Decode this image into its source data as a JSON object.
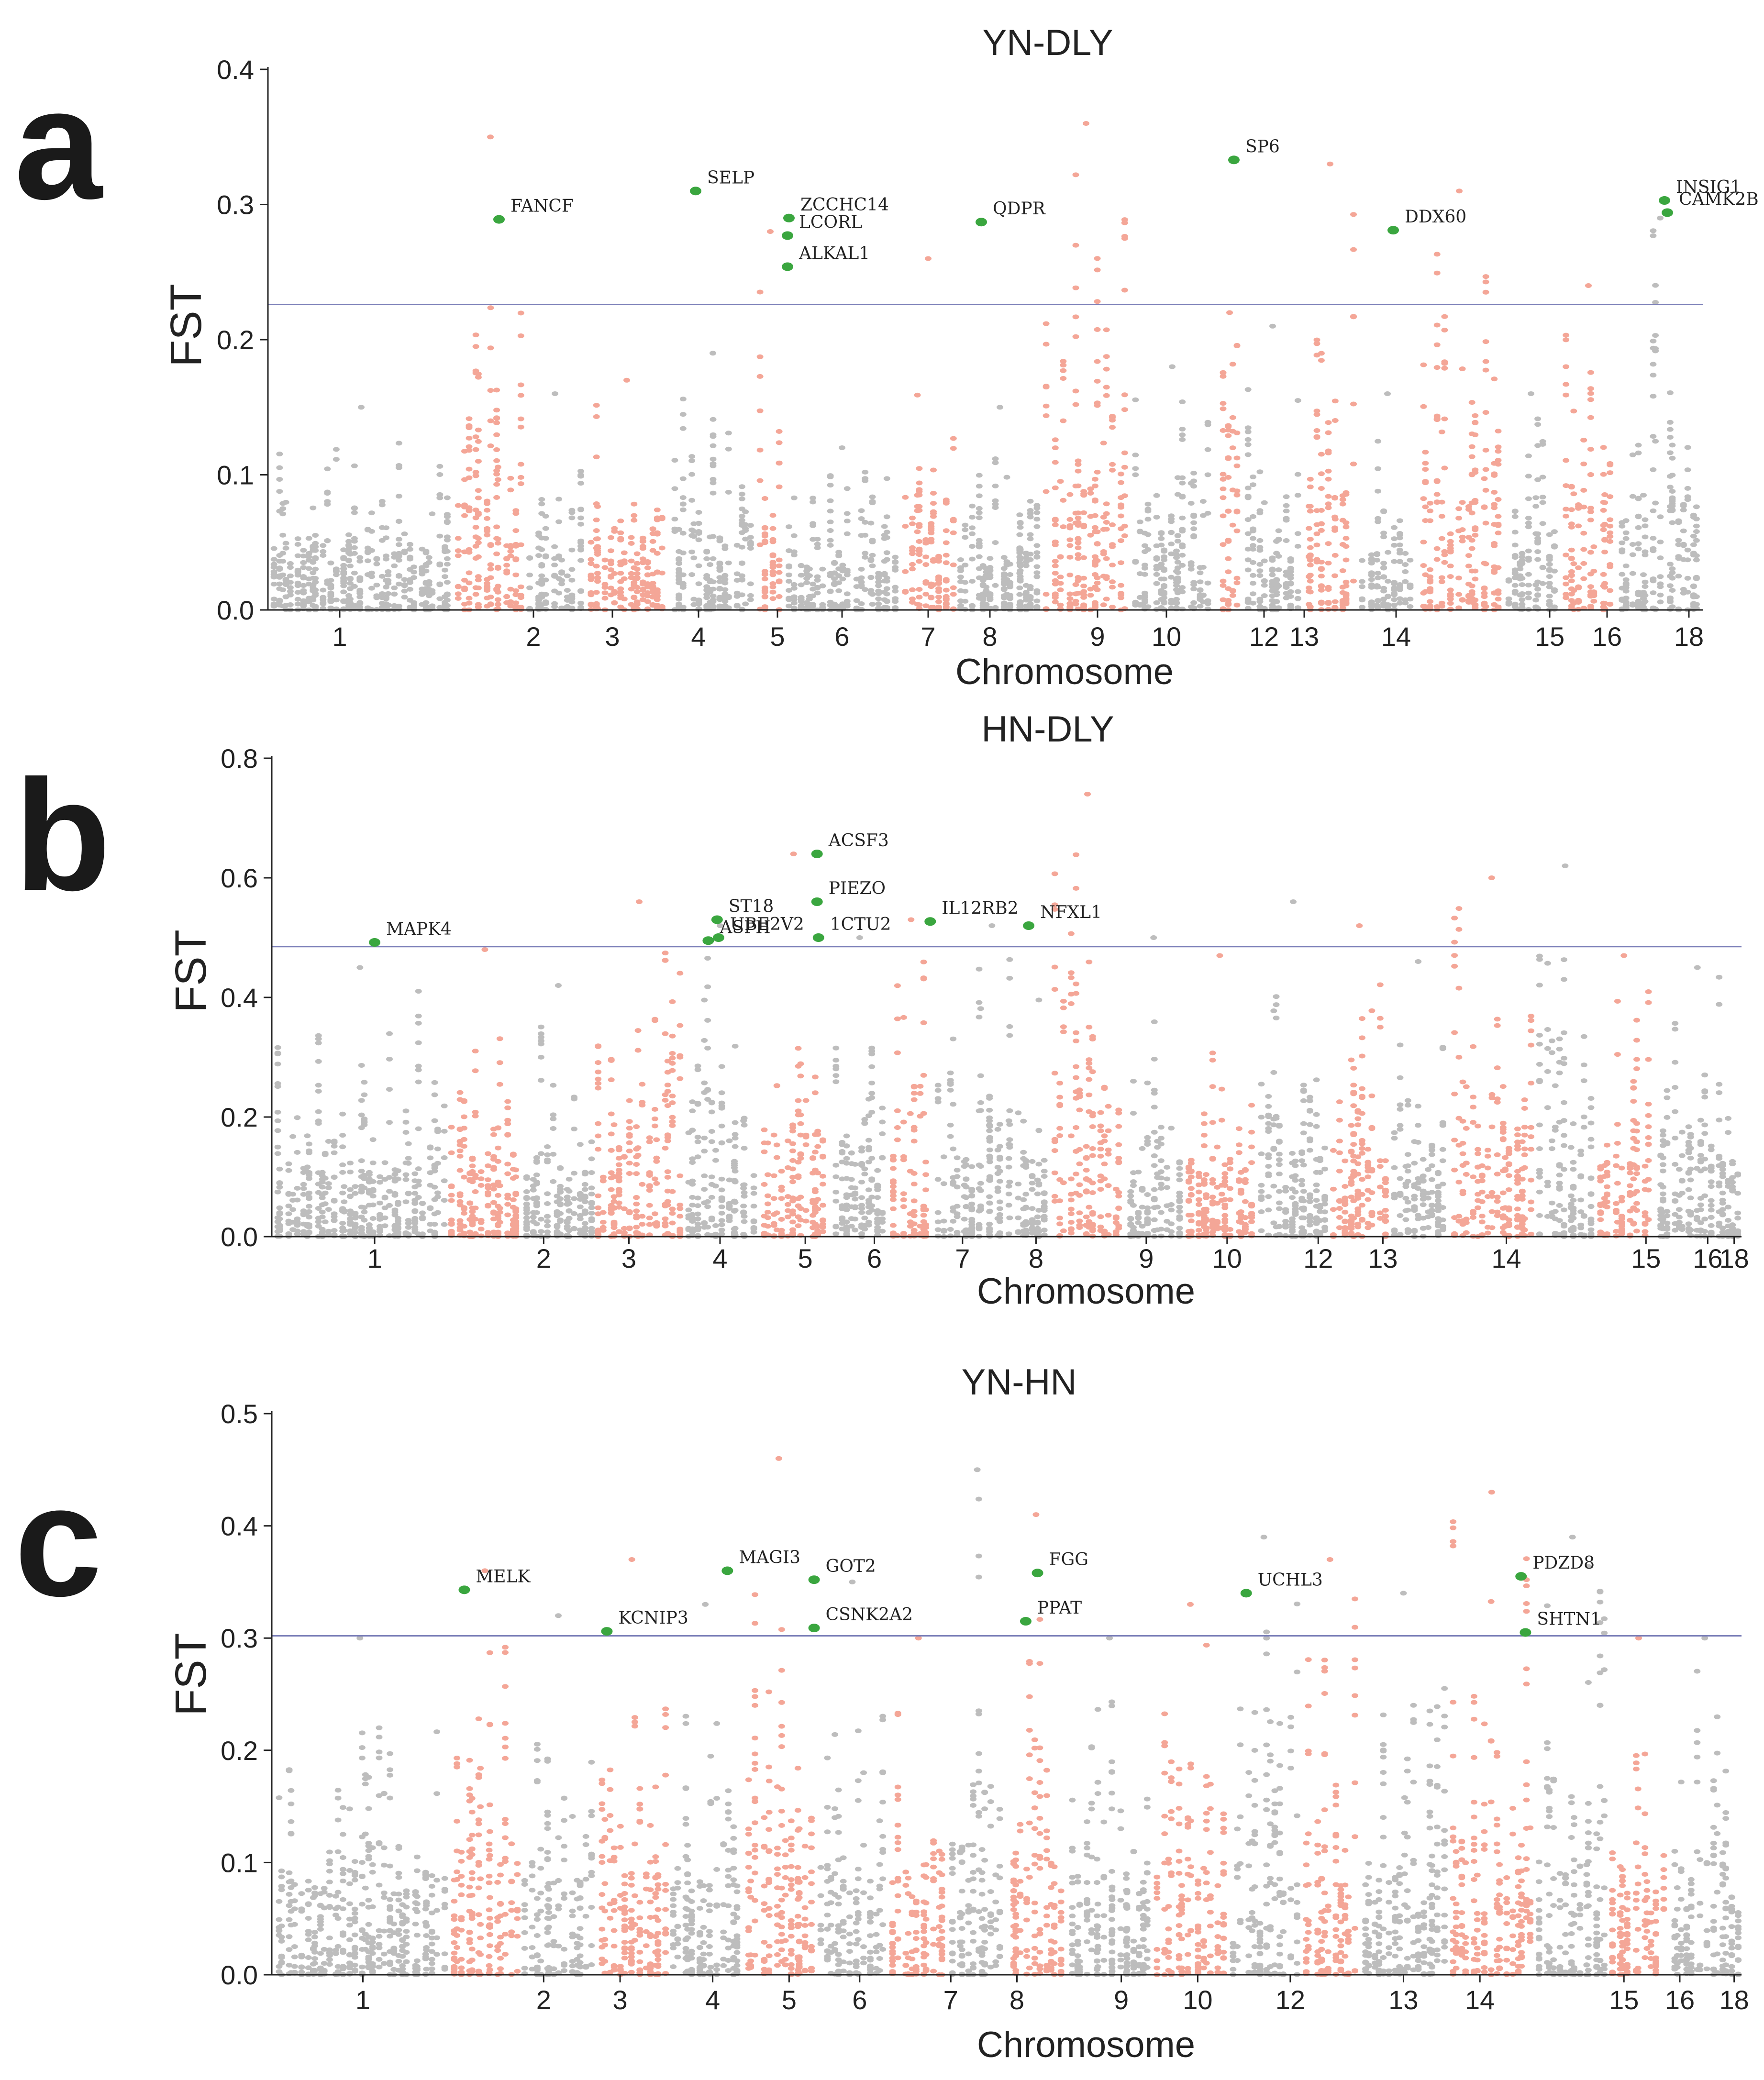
{
  "colors": {
    "gray": "#bdbdbd",
    "salmon": "#f4a697",
    "highlight": "#3aa63f",
    "threshold": "#7b7fb8"
  },
  "chart_data": [
    {
      "type": "scatter",
      "panel_label": "a",
      "title": "YN-DLY",
      "ylabel": "FST",
      "xlabel": "Chromosome",
      "ylim": [
        0.0,
        0.4
      ],
      "yticks": [
        "0.0",
        "0.1",
        "0.2",
        "0.3",
        "0.4"
      ],
      "threshold": 0.226,
      "chromosomes": [
        "1",
        "2",
        "3",
        "4",
        "5",
        "6",
        "7",
        "8",
        "9",
        "10",
        "12",
        "13",
        "14",
        "15",
        "16",
        "18"
      ],
      "chromosome_tick_positions": [
        0.05,
        0.185,
        0.24,
        0.3,
        0.355,
        0.4,
        0.46,
        0.503,
        0.578,
        0.626,
        0.694,
        0.722,
        0.786,
        0.893,
        0.933,
        0.99
      ],
      "chromosome_bands": [
        0.0,
        0.13,
        0.18,
        0.22,
        0.28,
        0.34,
        0.36,
        0.44,
        0.48,
        0.54,
        0.6,
        0.66,
        0.68,
        0.72,
        0.76,
        0.8,
        0.86,
        0.9,
        0.94,
        1.0
      ],
      "band_peaks": [
        0.15,
        0.35,
        0.16,
        0.17,
        0.19,
        0.28,
        0.12,
        0.26,
        0.15,
        0.36,
        0.18,
        0.22,
        0.21,
        0.33,
        0.16,
        0.31,
        0.16,
        0.24,
        0.29,
        0.28
      ],
      "genes": [
        {
          "name": "FANCF",
          "pos": 0.161,
          "fst": 0.289
        },
        {
          "name": "SELP",
          "pos": 0.298,
          "fst": 0.31
        },
        {
          "name": "ZCCHC14",
          "pos": 0.363,
          "fst": 0.29
        },
        {
          "name": "LCORL",
          "pos": 0.362,
          "fst": 0.277
        },
        {
          "name": "ALKAL1",
          "pos": 0.362,
          "fst": 0.254
        },
        {
          "name": "QDPR",
          "pos": 0.497,
          "fst": 0.287
        },
        {
          "name": "SP6",
          "pos": 0.673,
          "fst": 0.333
        },
        {
          "name": "DDX60",
          "pos": 0.784,
          "fst": 0.281
        },
        {
          "name": "INSIG1",
          "pos": 0.973,
          "fst": 0.303
        },
        {
          "name": "CAMK2B",
          "pos": 0.975,
          "fst": 0.294
        }
      ]
    },
    {
      "type": "scatter",
      "panel_label": "b",
      "title": "HN-DLY",
      "ylabel": "FST",
      "xlabel": "Chromosome",
      "ylim": [
        0.0,
        0.8
      ],
      "yticks": [
        "0.0",
        "0.2",
        "0.4",
        "0.6",
        "0.8"
      ],
      "threshold": 0.485,
      "chromosomes": [
        "1",
        "2",
        "3",
        "4",
        "5",
        "6",
        "7",
        "8",
        "9",
        "10",
        "12",
        "13",
        "14",
        "15",
        "16",
        "18"
      ],
      "chromosome_tick_positions": [
        0.07,
        0.185,
        0.243,
        0.305,
        0.363,
        0.41,
        0.47,
        0.52,
        0.595,
        0.65,
        0.712,
        0.756,
        0.84,
        0.935,
        0.977,
        1.04
      ],
      "chromosome_bands": [
        0.0,
        0.12,
        0.17,
        0.22,
        0.28,
        0.33,
        0.38,
        0.42,
        0.45,
        0.53,
        0.58,
        0.62,
        0.67,
        0.72,
        0.76,
        0.8,
        0.86,
        0.9,
        0.94,
        1.0
      ],
      "band_peaks": [
        0.45,
        0.48,
        0.42,
        0.56,
        0.52,
        0.64,
        0.5,
        0.53,
        0.52,
        0.74,
        0.5,
        0.47,
        0.56,
        0.52,
        0.46,
        0.6,
        0.62,
        0.47,
        0.45,
        0.47
      ],
      "genes": [
        {
          "name": "MAPK4",
          "pos": 0.07,
          "fst": 0.492
        },
        {
          "name": "ST18",
          "pos": 0.303,
          "fst": 0.53
        },
        {
          "name": "ASPH",
          "pos": 0.297,
          "fst": 0.495
        },
        {
          "name": "UBE2V2",
          "pos": 0.304,
          "fst": 0.5
        },
        {
          "name": "ACSF3",
          "pos": 0.371,
          "fst": 0.64
        },
        {
          "name": "PIEZO",
          "pos": 0.371,
          "fst": 0.56
        },
        {
          "name": "1CTU2",
          "pos": 0.372,
          "fst": 0.5
        },
        {
          "name": "IL12RB2",
          "pos": 0.448,
          "fst": 0.527
        },
        {
          "name": "NFXL1",
          "pos": 0.515,
          "fst": 0.52
        }
      ]
    },
    {
      "type": "scatter",
      "panel_label": "c",
      "title": "YN-HN",
      "ylabel": "FST",
      "xlabel": "Chromosome",
      "ylim": [
        0.0,
        0.5
      ],
      "yticks": [
        "0.0",
        "0.1",
        "0.2",
        "0.3",
        "0.4",
        "0.5"
      ],
      "threshold": 0.302,
      "chromosomes": [
        "1",
        "2",
        "3",
        "4",
        "5",
        "6",
        "7",
        "8",
        "9",
        "10",
        "12",
        "13",
        "14",
        "15",
        "16",
        "18"
      ],
      "chromosome_tick_positions": [
        0.062,
        0.185,
        0.237,
        0.3,
        0.352,
        0.4,
        0.462,
        0.507,
        0.578,
        0.63,
        0.693,
        0.77,
        0.822,
        0.92,
        0.958,
        1.0
      ],
      "chromosome_bands": [
        0.0,
        0.12,
        0.17,
        0.22,
        0.27,
        0.32,
        0.37,
        0.42,
        0.46,
        0.5,
        0.54,
        0.6,
        0.65,
        0.7,
        0.74,
        0.8,
        0.86,
        0.91,
        0.95,
        1.0
      ],
      "band_peaks": [
        0.3,
        0.36,
        0.32,
        0.37,
        0.33,
        0.46,
        0.35,
        0.3,
        0.45,
        0.41,
        0.3,
        0.33,
        0.39,
        0.37,
        0.34,
        0.43,
        0.39,
        0.3,
        0.3,
        0.28
      ],
      "genes": [
        {
          "name": "MELK",
          "pos": 0.131,
          "fst": 0.343
        },
        {
          "name": "KCNIP3",
          "pos": 0.228,
          "fst": 0.306
        },
        {
          "name": "MAGI3",
          "pos": 0.31,
          "fst": 0.36
        },
        {
          "name": "GOT2",
          "pos": 0.369,
          "fst": 0.352
        },
        {
          "name": "CSNK2A2",
          "pos": 0.369,
          "fst": 0.309
        },
        {
          "name": "PPAT",
          "pos": 0.513,
          "fst": 0.315
        },
        {
          "name": "FGG",
          "pos": 0.521,
          "fst": 0.358
        },
        {
          "name": "UCHL3",
          "pos": 0.663,
          "fst": 0.34
        },
        {
          "name": "PDZD8",
          "pos": 0.85,
          "fst": 0.355
        },
        {
          "name": "SHTN1",
          "pos": 0.853,
          "fst": 0.305
        }
      ]
    }
  ]
}
